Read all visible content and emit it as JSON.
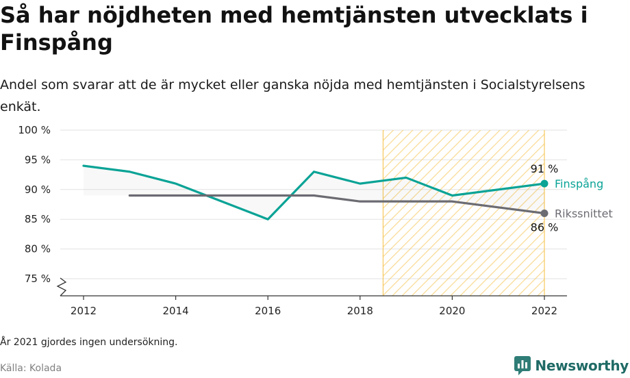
{
  "title": "Så har nöjdheten med hemtjänsten utvecklats i Finspång",
  "subtitle": "Andel som svarar att de är mycket eller ganska nöjda med hemtjänsten i Socialstyrelsens enkät.",
  "note": "År 2021 gjordes ingen undersökning.",
  "source": "Källa: Kolada",
  "brand": {
    "name": "Newsworthy",
    "icon": "newsworthy-logo-icon"
  },
  "colors": {
    "finspang": "#0aa396",
    "riks": "#6b6b72",
    "highlight": "#f6c75b",
    "grid": "#e2e2e2"
  },
  "chart_data": {
    "type": "line",
    "ylim": [
      72.5,
      100
    ],
    "xlim": [
      2011.6,
      2022.5
    ],
    "yticks": [
      75,
      80,
      85,
      90,
      95,
      100
    ],
    "ytick_labels": [
      "75 %",
      "80 %",
      "85 %",
      "90 %",
      "95 %",
      "100 %"
    ],
    "xticks": [
      2012,
      2014,
      2016,
      2018,
      2020,
      2022
    ],
    "xtick_labels": [
      "2012",
      "2014",
      "2016",
      "2018",
      "2020",
      "2022"
    ],
    "y_axis_break": true,
    "highlight_range": [
      2018.5,
      2022
    ],
    "series": [
      {
        "name": "Finspång",
        "x": [
          2012,
          2013,
          2014,
          2016,
          2017,
          2018,
          2019,
          2020,
          2022
        ],
        "values": [
          94,
          93,
          91,
          85,
          93,
          91,
          92,
          89,
          91
        ],
        "end_label": "91 %"
      },
      {
        "name": "Rikssnittet",
        "x": [
          2013,
          2014,
          2016,
          2017,
          2018,
          2019,
          2020,
          2022
        ],
        "values": [
          89,
          89,
          89,
          89,
          88,
          88,
          88,
          86
        ],
        "end_label": "86 %"
      }
    ]
  }
}
